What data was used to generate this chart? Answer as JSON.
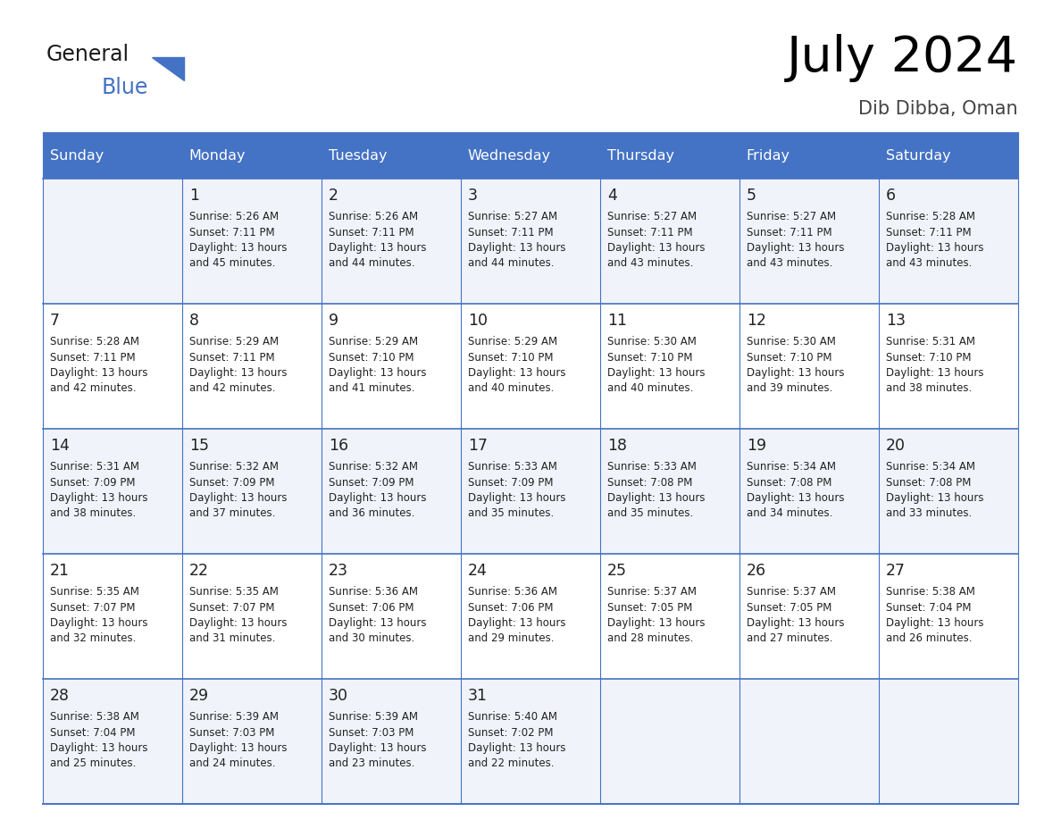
{
  "title": "July 2024",
  "subtitle": "Dib Dibba, Oman",
  "header_bg": "#4472C4",
  "header_text_color": "#FFFFFF",
  "day_names": [
    "Sunday",
    "Monday",
    "Tuesday",
    "Wednesday",
    "Thursday",
    "Friday",
    "Saturday"
  ],
  "row_bg_light": "#F0F4FA",
  "row_bg_white": "#FFFFFF",
  "cell_border_color": "#4472C4",
  "date_color": "#222222",
  "info_color": "#222222",
  "logo_general_color": "#1a1a1a",
  "blue_color": "#4472C4",
  "calendar": [
    [
      null,
      "1\nSunrise: 5:26 AM\nSunset: 7:11 PM\nDaylight: 13 hours\nand 45 minutes.",
      "2\nSunrise: 5:26 AM\nSunset: 7:11 PM\nDaylight: 13 hours\nand 44 minutes.",
      "3\nSunrise: 5:27 AM\nSunset: 7:11 PM\nDaylight: 13 hours\nand 44 minutes.",
      "4\nSunrise: 5:27 AM\nSunset: 7:11 PM\nDaylight: 13 hours\nand 43 minutes.",
      "5\nSunrise: 5:27 AM\nSunset: 7:11 PM\nDaylight: 13 hours\nand 43 minutes.",
      "6\nSunrise: 5:28 AM\nSunset: 7:11 PM\nDaylight: 13 hours\nand 43 minutes."
    ],
    [
      "7\nSunrise: 5:28 AM\nSunset: 7:11 PM\nDaylight: 13 hours\nand 42 minutes.",
      "8\nSunrise: 5:29 AM\nSunset: 7:11 PM\nDaylight: 13 hours\nand 42 minutes.",
      "9\nSunrise: 5:29 AM\nSunset: 7:10 PM\nDaylight: 13 hours\nand 41 minutes.",
      "10\nSunrise: 5:29 AM\nSunset: 7:10 PM\nDaylight: 13 hours\nand 40 minutes.",
      "11\nSunrise: 5:30 AM\nSunset: 7:10 PM\nDaylight: 13 hours\nand 40 minutes.",
      "12\nSunrise: 5:30 AM\nSunset: 7:10 PM\nDaylight: 13 hours\nand 39 minutes.",
      "13\nSunrise: 5:31 AM\nSunset: 7:10 PM\nDaylight: 13 hours\nand 38 minutes."
    ],
    [
      "14\nSunrise: 5:31 AM\nSunset: 7:09 PM\nDaylight: 13 hours\nand 38 minutes.",
      "15\nSunrise: 5:32 AM\nSunset: 7:09 PM\nDaylight: 13 hours\nand 37 minutes.",
      "16\nSunrise: 5:32 AM\nSunset: 7:09 PM\nDaylight: 13 hours\nand 36 minutes.",
      "17\nSunrise: 5:33 AM\nSunset: 7:09 PM\nDaylight: 13 hours\nand 35 minutes.",
      "18\nSunrise: 5:33 AM\nSunset: 7:08 PM\nDaylight: 13 hours\nand 35 minutes.",
      "19\nSunrise: 5:34 AM\nSunset: 7:08 PM\nDaylight: 13 hours\nand 34 minutes.",
      "20\nSunrise: 5:34 AM\nSunset: 7:08 PM\nDaylight: 13 hours\nand 33 minutes."
    ],
    [
      "21\nSunrise: 5:35 AM\nSunset: 7:07 PM\nDaylight: 13 hours\nand 32 minutes.",
      "22\nSunrise: 5:35 AM\nSunset: 7:07 PM\nDaylight: 13 hours\nand 31 minutes.",
      "23\nSunrise: 5:36 AM\nSunset: 7:06 PM\nDaylight: 13 hours\nand 30 minutes.",
      "24\nSunrise: 5:36 AM\nSunset: 7:06 PM\nDaylight: 13 hours\nand 29 minutes.",
      "25\nSunrise: 5:37 AM\nSunset: 7:05 PM\nDaylight: 13 hours\nand 28 minutes.",
      "26\nSunrise: 5:37 AM\nSunset: 7:05 PM\nDaylight: 13 hours\nand 27 minutes.",
      "27\nSunrise: 5:38 AM\nSunset: 7:04 PM\nDaylight: 13 hours\nand 26 minutes."
    ],
    [
      "28\nSunrise: 5:38 AM\nSunset: 7:04 PM\nDaylight: 13 hours\nand 25 minutes.",
      "29\nSunrise: 5:39 AM\nSunset: 7:03 PM\nDaylight: 13 hours\nand 24 minutes.",
      "30\nSunrise: 5:39 AM\nSunset: 7:03 PM\nDaylight: 13 hours\nand 23 minutes.",
      "31\nSunrise: 5:40 AM\nSunset: 7:02 PM\nDaylight: 13 hours\nand 22 minutes.",
      null,
      null,
      null
    ]
  ],
  "num_rows": 5,
  "num_cols": 7,
  "figsize": [
    11.88,
    9.18
  ],
  "dpi": 100
}
